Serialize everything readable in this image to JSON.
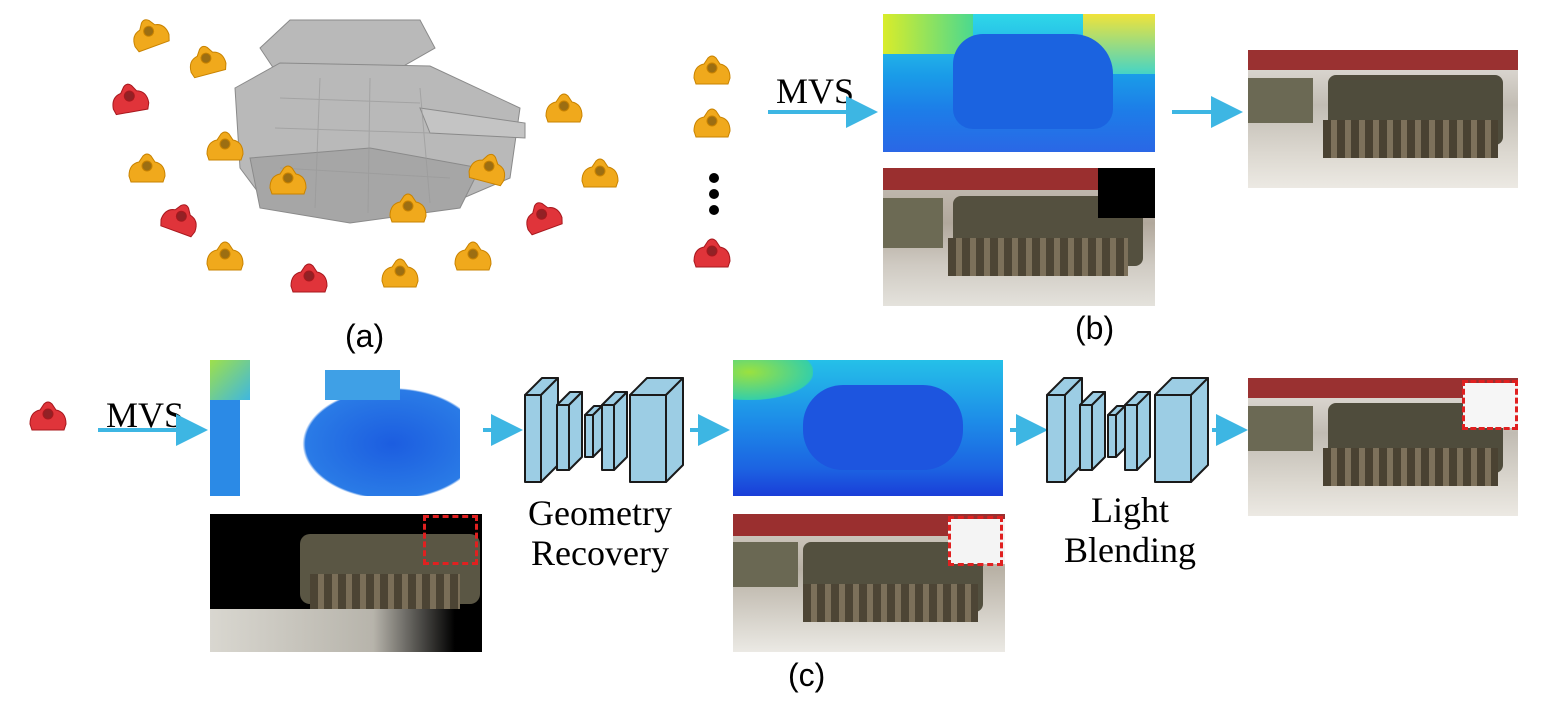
{
  "panels": {
    "a": "(a)",
    "b": "(b)",
    "c": "(c)"
  },
  "labels": {
    "mvs_top": "MVS",
    "mvs_bottom": "MVS",
    "geometry_recovery": [
      "Geometry",
      "Recovery"
    ],
    "light_blending": [
      "Light",
      "Blending"
    ]
  },
  "colors": {
    "arrow": "#3db6e3",
    "camera_selected": "#e0343a",
    "camera_other": "#f0a91c",
    "network_block": "#9ccde4",
    "dashed_box": "#e02020"
  }
}
